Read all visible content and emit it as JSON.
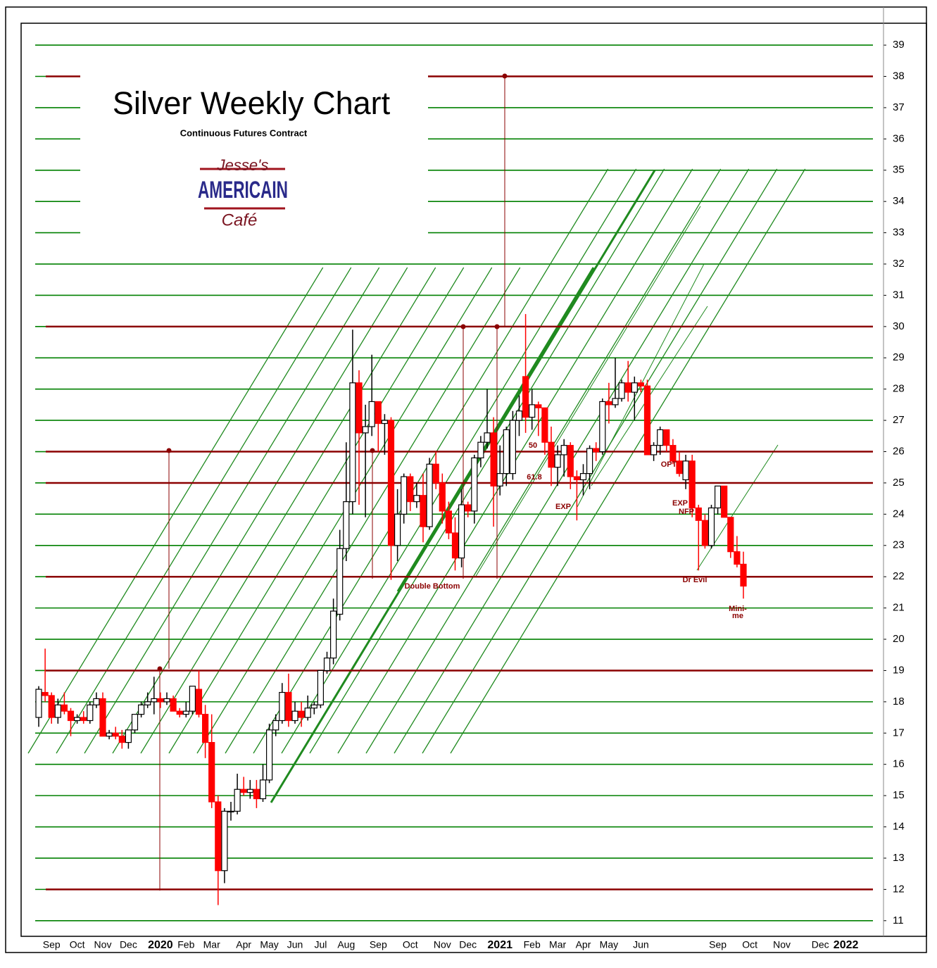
{
  "chart_data": {
    "type": "candlestick",
    "title": "Silver Weekly Chart",
    "subtitle": "Continuous Futures Contract",
    "logo": [
      "Jesse's",
      "AMERICAIN",
      "Café"
    ],
    "up_color": "#ffffff",
    "down_color": "#ff0000",
    "grid": true,
    "grid_color": "#008000",
    "level_color": "#8b0000",
    "levels": [
      38,
      30,
      26,
      25,
      22,
      19,
      12
    ],
    "ylim": [
      10.5,
      39.7
    ],
    "yticks": [
      11,
      12,
      13,
      14,
      15,
      16,
      17,
      18,
      19,
      20,
      21,
      22,
      23,
      24,
      25,
      26,
      27,
      28,
      29,
      30,
      31,
      32,
      33,
      34,
      35,
      36,
      37,
      38,
      39
    ],
    "annotations": [
      "Double Bottom",
      "Dr Evil",
      "Mini-",
      "me",
      "50",
      "61.8",
      "EXP",
      "OPT",
      "EXP",
      "NFP"
    ],
    "categories": [
      null,
      null,
      "Sep",
      null,
      null,
      null,
      "Oct",
      null,
      null,
      null,
      "Nov",
      null,
      null,
      null,
      "Dec",
      null,
      null,
      null,
      null,
      "2020",
      null,
      null,
      null,
      "Feb",
      null,
      null,
      null,
      "Mar",
      null,
      null,
      null,
      null,
      "Apr",
      null,
      null,
      null,
      "May",
      null,
      null,
      null,
      "Jun",
      null,
      null,
      null,
      "Jul",
      null,
      null,
      null,
      "Aug",
      null,
      null,
      null,
      null,
      "Sep",
      null,
      null,
      null,
      null,
      "Oct",
      null,
      null,
      null,
      null,
      "Nov",
      null,
      null,
      null,
      "Dec",
      null,
      null,
      null,
      null,
      "2021",
      null,
      null,
      null,
      null,
      "Feb",
      null,
      null,
      null,
      "Mar",
      null,
      null,
      null,
      "Apr",
      null,
      null,
      null,
      "May",
      null,
      null,
      null,
      null,
      "Jun",
      null,
      null,
      null,
      null,
      null,
      null,
      null,
      null,
      null,
      null,
      null,
      "Sep",
      null,
      null,
      null,
      null,
      "Oct",
      null,
      null,
      null,
      null,
      "Nov",
      null,
      null,
      null,
      null,
      null,
      "Dec",
      null,
      null,
      null,
      "2022"
    ],
    "ohlc": [
      [
        17.5,
        18.5,
        17.2,
        18.4
      ],
      [
        18.3,
        19.7,
        18.0,
        18.2
      ],
      [
        18.2,
        18.3,
        17.3,
        17.5
      ],
      [
        17.5,
        18.1,
        17.3,
        17.9
      ],
      [
        17.9,
        18.3,
        17.6,
        17.7
      ],
      [
        17.7,
        17.8,
        16.9,
        17.4
      ],
      [
        17.4,
        17.6,
        17.3,
        17.5
      ],
      [
        17.5,
        17.7,
        17.3,
        17.4
      ],
      [
        17.4,
        18.0,
        17.3,
        17.9
      ],
      [
        17.9,
        18.3,
        17.8,
        18.1
      ],
      [
        18.1,
        18.3,
        16.9,
        16.9
      ],
      [
        16.9,
        17.1,
        16.8,
        17.0
      ],
      [
        17.0,
        17.2,
        16.8,
        16.9
      ],
      [
        16.9,
        17.1,
        16.5,
        16.7
      ],
      [
        16.7,
        17.1,
        16.5,
        17.1
      ],
      [
        17.1,
        17.6,
        17.0,
        17.6
      ],
      [
        17.6,
        18.0,
        17.5,
        17.9
      ],
      [
        17.9,
        18.3,
        17.8,
        18.0
      ],
      [
        18.0,
        18.8,
        17.6,
        18.1
      ],
      [
        18.1,
        18.3,
        17.8,
        18.0
      ],
      [
        18.0,
        18.3,
        17.9,
        18.1
      ],
      [
        18.1,
        18.2,
        17.7,
        17.7
      ],
      [
        17.7,
        17.8,
        17.5,
        17.6
      ],
      [
        17.6,
        18.0,
        17.5,
        17.7
      ],
      [
        17.7,
        18.5,
        17.6,
        18.5
      ],
      [
        18.4,
        19.0,
        17.5,
        17.6
      ],
      [
        17.6,
        17.9,
        16.2,
        16.7
      ],
      [
        16.7,
        17.6,
        14.6,
        14.8
      ],
      [
        14.8,
        15.0,
        11.5,
        12.6
      ],
      [
        12.6,
        14.6,
        12.2,
        14.5
      ],
      [
        14.5,
        14.8,
        14.2,
        14.5
      ],
      [
        14.5,
        15.7,
        14.4,
        15.2
      ],
      [
        15.2,
        15.6,
        15.0,
        15.1
      ],
      [
        15.1,
        15.5,
        14.9,
        15.2
      ],
      [
        15.2,
        15.5,
        14.6,
        14.9
      ],
      [
        14.9,
        16.0,
        14.8,
        15.5
      ],
      [
        15.5,
        17.3,
        15.4,
        17.1
      ],
      [
        17.1,
        17.6,
        16.9,
        17.4
      ],
      [
        17.4,
        18.6,
        17.3,
        18.3
      ],
      [
        18.3,
        18.9,
        17.2,
        17.4
      ],
      [
        17.4,
        18.0,
        17.3,
        17.7
      ],
      [
        17.7,
        18.0,
        17.2,
        17.5
      ],
      [
        17.5,
        18.2,
        17.4,
        17.8
      ],
      [
        17.8,
        18.0,
        17.6,
        17.9
      ],
      [
        17.9,
        19.0,
        17.8,
        19.0
      ],
      [
        19.0,
        19.6,
        18.9,
        19.4
      ],
      [
        19.4,
        21.3,
        19.2,
        20.9
      ],
      [
        20.8,
        23.5,
        20.6,
        22.9
      ],
      [
        22.9,
        26.3,
        22.5,
        24.4
      ],
      [
        24.4,
        29.9,
        24.0,
        28.2
      ],
      [
        28.2,
        28.6,
        24.3,
        26.6
      ],
      [
        26.6,
        27.5,
        23.9,
        26.8
      ],
      [
        26.8,
        29.1,
        26.5,
        27.6
      ],
      [
        27.6,
        27.6,
        26.0,
        26.9
      ],
      [
        26.9,
        27.2,
        25.9,
        27.0
      ],
      [
        27.0,
        27.1,
        21.9,
        23.0
      ],
      [
        23.0,
        24.8,
        22.5,
        24.0
      ],
      [
        24.0,
        25.3,
        23.7,
        25.2
      ],
      [
        25.2,
        25.3,
        24.1,
        24.4
      ],
      [
        24.4,
        25.0,
        24.2,
        24.6
      ],
      [
        24.6,
        25.3,
        23.1,
        23.6
      ],
      [
        23.6,
        25.8,
        23.5,
        25.6
      ],
      [
        25.6,
        26.0,
        24.8,
        25.0
      ],
      [
        25.0,
        25.3,
        23.7,
        24.1
      ],
      [
        24.1,
        24.4,
        23.2,
        23.4
      ],
      [
        23.4,
        23.9,
        22.2,
        22.6
      ],
      [
        22.6,
        24.8,
        22.3,
        24.3
      ],
      [
        24.3,
        24.4,
        23.9,
        24.1
      ],
      [
        24.1,
        25.9,
        23.7,
        25.8
      ],
      [
        25.8,
        26.5,
        25.5,
        26.3
      ],
      [
        26.3,
        28.0,
        26.1,
        26.6
      ],
      [
        26.6,
        27.1,
        23.6,
        24.9
      ],
      [
        24.9,
        26.2,
        24.6,
        25.3
      ],
      [
        25.3,
        26.8,
        24.9,
        26.7
      ],
      [
        25.3,
        27.3,
        25.1,
        27.0
      ],
      [
        27.0,
        27.8,
        26.5,
        27.3
      ],
      [
        28.4,
        30.4,
        26.6,
        27.1
      ],
      [
        27.1,
        28.0,
        26.7,
        27.5
      ],
      [
        27.5,
        27.6,
        26.5,
        27.4
      ],
      [
        27.4,
        27.4,
        25.9,
        26.3
      ],
      [
        26.3,
        26.8,
        24.9,
        25.5
      ],
      [
        25.5,
        26.2,
        24.9,
        25.9
      ],
      [
        25.9,
        26.4,
        25.2,
        26.2
      ],
      [
        26.2,
        26.3,
        24.8,
        25.2
      ],
      [
        25.2,
        25.4,
        23.8,
        25.1
      ],
      [
        25.1,
        25.6,
        24.6,
        25.3
      ],
      [
        25.3,
        26.2,
        24.8,
        26.1
      ],
      [
        26.1,
        26.3,
        25.7,
        26.0
      ],
      [
        26.0,
        27.7,
        25.9,
        27.6
      ],
      [
        27.6,
        28.2,
        26.9,
        27.5
      ],
      [
        27.5,
        29.0,
        27.4,
        27.7
      ],
      [
        27.7,
        28.3,
        27.6,
        28.2
      ],
      [
        28.2,
        28.9,
        27.6,
        27.9
      ],
      [
        27.9,
        28.4,
        27.0,
        28.2
      ],
      [
        28.2,
        28.3,
        27.9,
        28.1
      ],
      [
        28.1,
        28.3,
        25.9,
        25.9
      ],
      [
        25.9,
        26.3,
        25.7,
        26.2
      ],
      [
        26.2,
        26.8,
        25.9,
        26.7
      ],
      [
        26.7,
        26.7,
        26.0,
        26.2
      ],
      [
        26.2,
        26.4,
        25.6,
        25.7
      ],
      [
        25.7,
        26.0,
        25.2,
        25.3
      ],
      [
        25.1,
        25.9,
        24.8,
        25.7
      ],
      [
        25.7,
        25.9,
        23.9,
        24.2
      ],
      [
        24.2,
        24.3,
        22.2,
        23.8
      ],
      [
        23.8,
        24.0,
        22.9,
        23.0
      ],
      [
        23.0,
        24.3,
        22.9,
        24.2
      ],
      [
        24.2,
        24.9,
        24.0,
        24.9
      ],
      [
        24.9,
        24.9,
        23.9,
        23.9
      ],
      [
        23.9,
        23.9,
        22.6,
        22.8
      ],
      [
        22.8,
        23.3,
        22.3,
        22.4
      ],
      [
        22.4,
        22.8,
        21.3,
        21.7
      ],
      null,
      null,
      null,
      null,
      null,
      null,
      null,
      null,
      null,
      null,
      null,
      null,
      null,
      null,
      null,
      null
    ]
  }
}
